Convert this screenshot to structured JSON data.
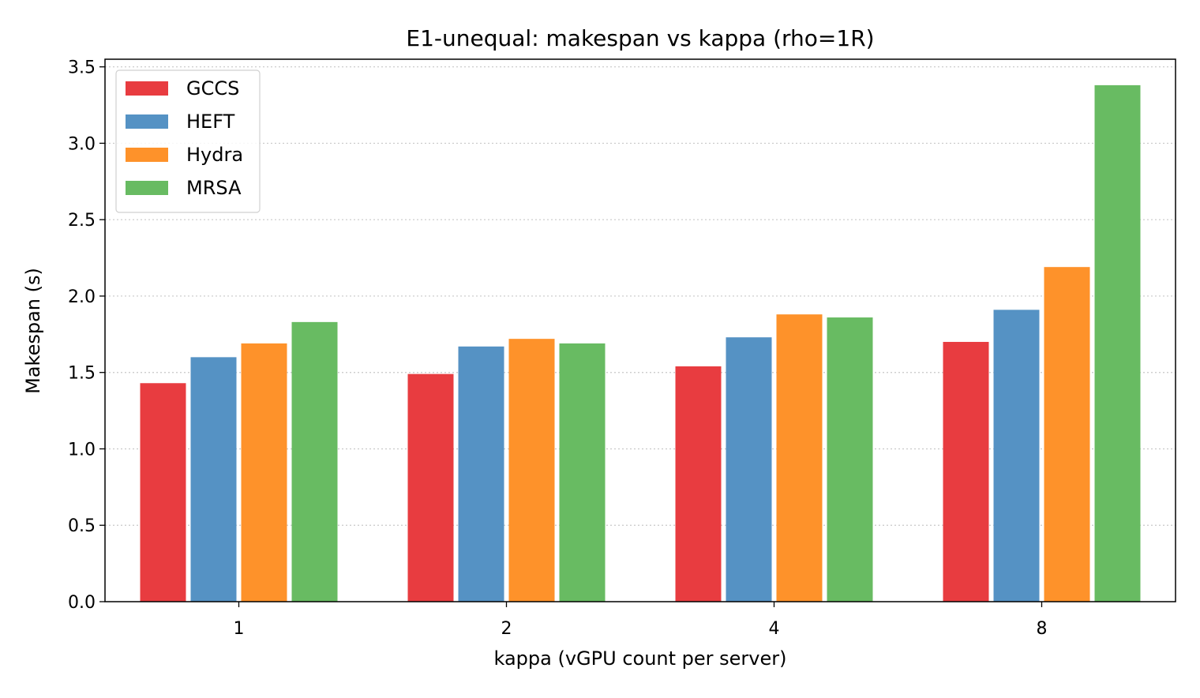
{
  "chart_data": {
    "type": "bar",
    "title": "E1-unequal: makespan vs kappa (rho=1R)",
    "xlabel": "kappa (vGPU count per server)",
    "ylabel": "Makespan (s)",
    "categories": [
      "1",
      "2",
      "4",
      "8"
    ],
    "ylim": [
      0,
      3.55
    ],
    "yticks": [
      0.0,
      0.5,
      1.0,
      1.5,
      2.0,
      2.5,
      3.0,
      3.5
    ],
    "ytick_labels": [
      "0.0",
      "0.5",
      "1.0",
      "1.5",
      "2.0",
      "2.5",
      "3.0",
      "3.5"
    ],
    "grid": "y-dotted",
    "legend_position": "top-left",
    "series": [
      {
        "name": "GCCS",
        "color": "#e83c40",
        "values": [
          1.43,
          1.49,
          1.54,
          1.7
        ]
      },
      {
        "name": "HEFT",
        "color": "#5592c4",
        "values": [
          1.6,
          1.67,
          1.73,
          1.91
        ]
      },
      {
        "name": "Hydra",
        "color": "#fe922a",
        "values": [
          1.69,
          1.72,
          1.88,
          2.19
        ]
      },
      {
        "name": "MRSA",
        "color": "#68bb62",
        "values": [
          1.83,
          1.69,
          1.86,
          3.38
        ]
      }
    ]
  }
}
